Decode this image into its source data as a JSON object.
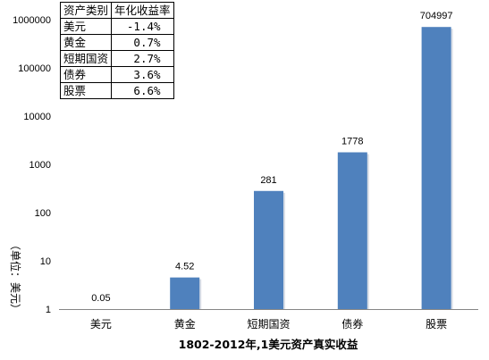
{
  "table": {
    "headers": [
      "资产类别",
      "年化收益率"
    ],
    "rows": [
      [
        "美元",
        "-1.4%"
      ],
      [
        "黄金",
        "0.7%"
      ],
      [
        "短期国资",
        "2.7%"
      ],
      [
        "债券",
        "3.6%"
      ],
      [
        "股票",
        "6.6%"
      ]
    ]
  },
  "chart_data": {
    "type": "bar",
    "title": "",
    "xlabel": "1802-2012年,1美元资产真实收益",
    "ylabel": "（单位：美元）",
    "yscale": "log",
    "ylim": [
      1,
      1000000
    ],
    "ytick_labels": [
      "1",
      "10",
      "100",
      "1000",
      "10000",
      "100000",
      "1000000"
    ],
    "categories": [
      "美元",
      "黄金",
      "短期国资",
      "债券",
      "股票"
    ],
    "values": [
      0.05,
      4.52,
      281,
      1778,
      704997
    ],
    "data_labels": [
      "0.05",
      "4.52",
      "281",
      "1778",
      "704997"
    ],
    "bar_color": "#4f81bd",
    "grid": false,
    "legend": "none"
  }
}
